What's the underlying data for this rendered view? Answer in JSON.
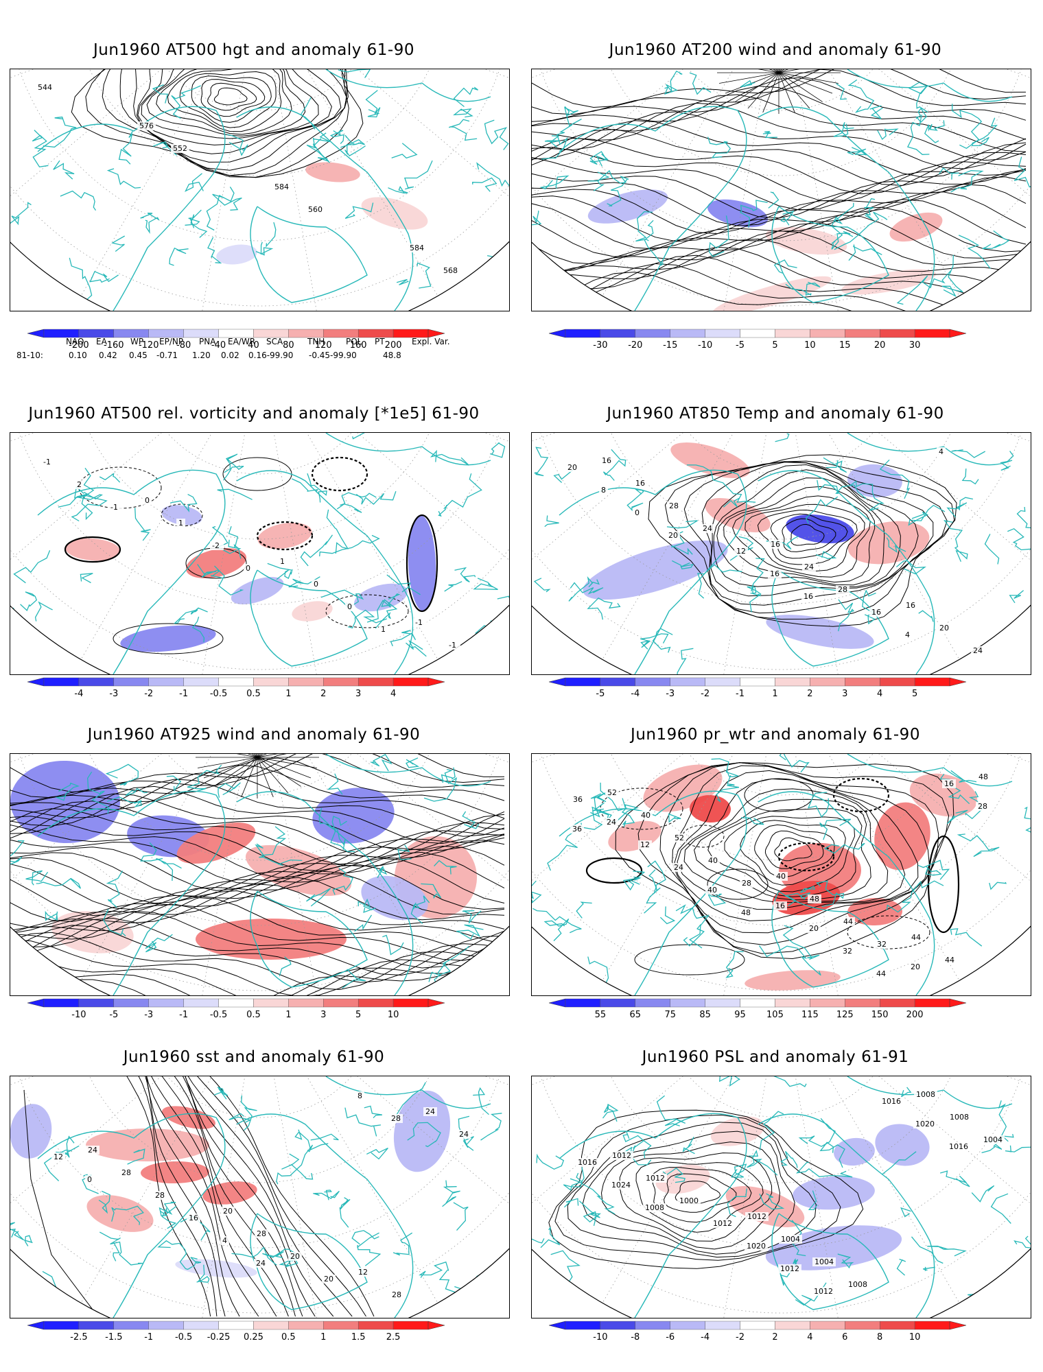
{
  "colors": {
    "coast": "#27b8b8",
    "contour": "#000000",
    "neg": [
      "#1f1fff",
      "#4a4ae8",
      "#8888f0",
      "#b9b9f6",
      "#dcdcfa"
    ],
    "pos": [
      "#f9d6d6",
      "#f6b0b0",
      "#f27e7e",
      "#ee4b4b",
      "#ff1a1a"
    ]
  },
  "panels": [
    {
      "id": "p1",
      "title": "Jun1960 AT500 hgt and anomaly 61-90",
      "colorbar_ticks": [
        "-200",
        "-160",
        "-120",
        "-80",
        "-40",
        "40",
        "80",
        "120",
        "160",
        "200"
      ],
      "contour_labels": [
        "544",
        "552",
        "560",
        "568",
        "576",
        "584",
        "584"
      ]
    },
    {
      "id": "p2",
      "title": "Jun1960 AT200 wind and anomaly 61-90",
      "colorbar_ticks": [
        "-30",
        "-20",
        "-15",
        "-10",
        "-5",
        "5",
        "10",
        "15",
        "20",
        "30"
      ],
      "contour_labels": []
    },
    {
      "id": "p3",
      "title": "Jun1960 AT500 rel. vorticity and anomaly [*1e5] 61-90",
      "colorbar_ticks": [
        "-4",
        "-3",
        "-2",
        "-1",
        "-0.5",
        "0.5",
        "1",
        "2",
        "3",
        "4"
      ],
      "contour_labels": [
        "-1",
        "0",
        "1",
        "2",
        "-2",
        "0",
        "-1",
        "1",
        "0",
        "-1",
        "0",
        "1",
        "-1"
      ]
    },
    {
      "id": "p4",
      "title": "Jun1960 AT850 Temp and anomaly 61-90",
      "colorbar_ticks": [
        "-5",
        "-4",
        "-3",
        "-2",
        "-1",
        "1",
        "2",
        "3",
        "4",
        "5"
      ],
      "contour_labels": [
        "20",
        "16",
        "4",
        "0",
        "16",
        "4",
        "8",
        "12",
        "16",
        "20",
        "24",
        "28",
        "24",
        "28",
        "24",
        "20",
        "16",
        "16",
        "16",
        "16"
      ]
    },
    {
      "id": "p5",
      "title": "Jun1960 AT925 wind and anomaly 61-90",
      "colorbar_ticks": [
        "-10",
        "-5",
        "-3",
        "-1",
        "-0.5",
        "0.5",
        "1",
        "3",
        "5",
        "10"
      ],
      "contour_labels": []
    },
    {
      "id": "p6",
      "title": "Jun1960 pr_wtr and anomaly 61-90",
      "colorbar_ticks": [
        "55",
        "65",
        "75",
        "85",
        "95",
        "105",
        "115",
        "125",
        "150",
        "200"
      ],
      "contour_labels": [
        "48",
        "44",
        "36",
        "40",
        "32",
        "28",
        "24",
        "20",
        "16",
        "12",
        "16",
        "20",
        "24",
        "28",
        "32",
        "36",
        "40",
        "44",
        "48",
        "52",
        "48",
        "44",
        "40",
        "40",
        "44",
        "52"
      ]
    },
    {
      "id": "p7",
      "title": "Jun1960 sst and anomaly 61-90",
      "colorbar_ticks": [
        "-2.5",
        "-1.5",
        "-1",
        "-0.5",
        "-0.25",
        "0.25",
        "0.5",
        "1",
        "1.5",
        "2.5"
      ],
      "contour_labels": [
        "24",
        "28",
        "0",
        "4",
        "8",
        "12",
        "16",
        "20",
        "24",
        "28",
        "20",
        "24",
        "28",
        "28",
        "28",
        "24",
        "20",
        "12"
      ]
    },
    {
      "id": "p8",
      "title": "Jun1960 PSL and anomaly 61-91",
      "colorbar_ticks": [
        "-10",
        "-8",
        "-6",
        "-4",
        "-2",
        "2",
        "4",
        "6",
        "8",
        "10"
      ],
      "contour_labels": [
        "1012",
        "1016",
        "1008",
        "1012",
        "1020",
        "1024",
        "1020",
        "1016",
        "1016",
        "1012",
        "1008",
        "1004",
        "1000",
        "1004",
        "1008",
        "1012",
        "1004",
        "1008",
        "1012",
        "1012"
      ]
    }
  ],
  "indices": {
    "headers": [
      "NAO",
      "EA",
      "WP",
      "EP/NP",
      "PNA",
      "EA/WR",
      "SCA",
      "TNH",
      "POL",
      "PT",
      "Expl. Var."
    ],
    "row_label": "81-10:",
    "values": [
      "0.10",
      "0.42",
      "0.45",
      "-0.71",
      "1.20",
      "0.02",
      "0.16-99.90",
      "-0.45-99.90",
      "48.8"
    ]
  }
}
